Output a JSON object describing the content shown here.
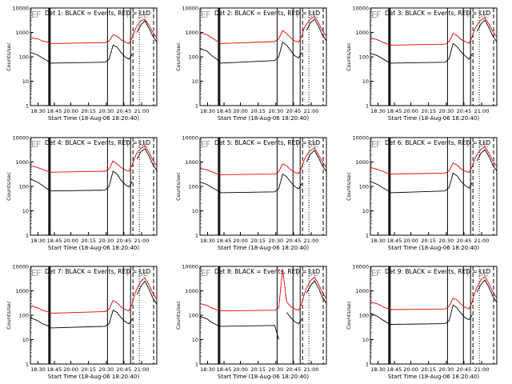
{
  "figure": {
    "xlabel": "Start Time (18-Aug-06 18:20:40)",
    "ylabel": "Counts/sec",
    "x_tick_labels": [
      "18:30",
      "18:45",
      "20:00",
      "20:15",
      "20:30",
      "20:45",
      "21:00"
    ],
    "y_tick_labels": [
      "1",
      "10",
      "100",
      "1000",
      "10000"
    ],
    "markers": [
      "E",
      "F",
      "T",
      "SE"
    ],
    "colors": {
      "black": "#000000",
      "red": "#e00000",
      "background": "#ffffff"
    }
  },
  "chart_data": [
    {
      "type": "line",
      "title": "Det 1: BLACK = Events, RED = LLD",
      "y_scale": "log",
      "ylim": [
        1,
        10000
      ],
      "grid": false,
      "x": [
        "18:21",
        "18:30",
        "18:36",
        "18:42",
        "18:47",
        "19:55",
        "20:00",
        "20:05",
        "20:10",
        "20:15",
        "20:20",
        "20:25",
        "20:29",
        "20:32",
        "20:35",
        "20:40",
        "20:45",
        "20:50",
        "20:55",
        "21:00"
      ],
      "series": [
        {
          "name": "Events",
          "color": "#000000",
          "values": [
            150,
            120,
            90,
            70,
            55,
            60,
            80,
            300,
            250,
            150,
            100,
            80,
            130,
            null,
            1000,
            2000,
            3000,
            1500,
            700,
            400
          ]
        },
        {
          "name": "LLD",
          "color": "#e00000",
          "values": [
            600,
            550,
            450,
            400,
            350,
            380,
            450,
            800,
            700,
            500,
            400,
            350,
            600,
            1200,
            1800,
            3000,
            3500,
            2000,
            1000,
            600
          ]
        }
      ],
      "vertical_lines": {
        "solid": [
          "18:44",
          "18:45",
          "18:46",
          "19:58",
          "20:18",
          "20:27"
        ],
        "dotted": [
          "20:38"
        ],
        "dashed": [
          "20:30",
          "20:56"
        ]
      }
    },
    {
      "type": "line",
      "title": "Det 2: BLACK = Events, RED = LLD",
      "y_scale": "log",
      "ylim": [
        1,
        10000
      ],
      "grid": false,
      "x": [
        "18:21",
        "18:30",
        "18:36",
        "18:42",
        "18:47",
        "19:55",
        "20:00",
        "20:05",
        "20:10",
        "20:15",
        "20:20",
        "20:25",
        "20:29",
        "20:32",
        "20:35",
        "20:40",
        "20:45",
        "20:50",
        "20:55",
        "21:00"
      ],
      "series": [
        {
          "name": "Events",
          "color": "#000000",
          "values": [
            220,
            170,
            110,
            80,
            55,
            70,
            100,
            400,
            300,
            180,
            110,
            90,
            150,
            null,
            1200,
            2500,
            3500,
            1800,
            800,
            450
          ]
        },
        {
          "name": "LLD",
          "color": "#e00000",
          "values": [
            1000,
            800,
            600,
            450,
            350,
            420,
            550,
            1200,
            900,
            600,
            450,
            400,
            700,
            1500,
            2200,
            3500,
            4500,
            2500,
            1200,
            700
          ]
        }
      ],
      "vertical_lines": {
        "solid": [
          "18:44",
          "18:45",
          "18:46",
          "19:58",
          "20:18",
          "20:27"
        ],
        "dotted": [
          "20:38"
        ],
        "dashed": [
          "20:30",
          "20:56"
        ]
      }
    },
    {
      "type": "line",
      "title": "Det 3: BLACK = Events, RED = LLD",
      "y_scale": "log",
      "ylim": [
        1,
        10000
      ],
      "grid": false,
      "x": [
        "18:21",
        "18:30",
        "18:36",
        "18:42",
        "18:47",
        "19:55",
        "20:00",
        "20:05",
        "20:10",
        "20:15",
        "20:20",
        "20:25",
        "20:29",
        "20:32",
        "20:35",
        "20:40",
        "20:45",
        "20:50",
        "20:55",
        "21:00"
      ],
      "series": [
        {
          "name": "Events",
          "color": "#000000",
          "values": [
            140,
            110,
            85,
            65,
            55,
            60,
            85,
            350,
            260,
            160,
            110,
            80,
            130,
            null,
            1100,
            2200,
            3200,
            1600,
            700,
            400
          ]
        },
        {
          "name": "LLD",
          "color": "#e00000",
          "values": [
            600,
            500,
            400,
            330,
            300,
            330,
            420,
            900,
            750,
            520,
            420,
            360,
            650,
            1300,
            2000,
            3200,
            4000,
            2200,
            1100,
            650
          ]
        }
      ],
      "vertical_lines": {
        "solid": [
          "18:44",
          "18:45",
          "18:46",
          "19:58",
          "20:18",
          "20:27"
        ],
        "dotted": [
          "20:38"
        ],
        "dashed": [
          "20:30",
          "20:56"
        ]
      }
    },
    {
      "type": "line",
      "title": "Det 4: BLACK = Events, RED = LLD",
      "y_scale": "log",
      "ylim": [
        1,
        10000
      ],
      "grid": false,
      "x": [
        "18:21",
        "18:30",
        "18:36",
        "18:42",
        "18:47",
        "19:55",
        "20:00",
        "20:05",
        "20:10",
        "20:15",
        "20:20",
        "20:25",
        "20:29",
        "20:32",
        "20:35",
        "20:40",
        "20:45",
        "20:50",
        "20:55",
        "21:00"
      ],
      "series": [
        {
          "name": "Events",
          "color": "#000000",
          "values": [
            200,
            150,
            110,
            80,
            65,
            70,
            100,
            420,
            320,
            180,
            120,
            95,
            160,
            null,
            1300,
            2600,
            3500,
            1800,
            800,
            450
          ]
        },
        {
          "name": "LLD",
          "color": "#e00000",
          "values": [
            700,
            600,
            500,
            420,
            380,
            420,
            520,
            1100,
            850,
            600,
            470,
            420,
            750,
            1500,
            2300,
            3600,
            4500,
            2500,
            1200,
            700
          ]
        }
      ],
      "vertical_lines": {
        "solid": [
          "18:44",
          "18:45",
          "18:46",
          "19:58",
          "20:18",
          "20:27"
        ],
        "dotted": [
          "20:38"
        ],
        "dashed": [
          "20:30",
          "20:56"
        ]
      }
    },
    {
      "type": "line",
      "title": "Det 5: BLACK = Events, RED = LLD",
      "y_scale": "log",
      "ylim": [
        1,
        10000
      ],
      "grid": false,
      "x": [
        "18:21",
        "18:30",
        "18:36",
        "18:42",
        "18:47",
        "19:55",
        "20:00",
        "20:05",
        "20:10",
        "20:15",
        "20:20",
        "20:25",
        "20:29",
        "20:32",
        "20:35",
        "20:40",
        "20:45",
        "20:50",
        "20:55",
        "21:00"
      ],
      "series": [
        {
          "name": "Events",
          "color": "#000000",
          "values": [
            150,
            120,
            90,
            70,
            55,
            60,
            80,
            320,
            250,
            150,
            100,
            80,
            130,
            null,
            1000,
            2100,
            3000,
            1500,
            700,
            400
          ]
        },
        {
          "name": "LLD",
          "color": "#e00000",
          "values": [
            550,
            480,
            400,
            330,
            300,
            320,
            400,
            850,
            700,
            480,
            380,
            340,
            600,
            1200,
            1900,
            3000,
            3800,
            2000,
            1000,
            600
          ]
        }
      ],
      "vertical_lines": {
        "solid": [
          "18:44",
          "18:45",
          "18:46",
          "19:58",
          "20:18",
          "20:27"
        ],
        "dotted": [
          "20:38"
        ],
        "dashed": [
          "20:30",
          "20:56"
        ]
      }
    },
    {
      "type": "line",
      "title": "Det 6: BLACK = Events, RED = LLD",
      "y_scale": "log",
      "ylim": [
        1,
        10000
      ],
      "grid": false,
      "x": [
        "18:21",
        "18:30",
        "18:36",
        "18:42",
        "18:47",
        "19:55",
        "20:00",
        "20:05",
        "20:10",
        "20:15",
        "20:20",
        "20:25",
        "20:29",
        "20:32",
        "20:35",
        "20:40",
        "20:45",
        "20:50",
        "20:55",
        "21:00"
      ],
      "series": [
        {
          "name": "Events",
          "color": "#000000",
          "values": [
            160,
            120,
            90,
            70,
            55,
            65,
            90,
            350,
            270,
            160,
            110,
            85,
            140,
            null,
            1100,
            2300,
            3200,
            1700,
            750,
            420
          ]
        },
        {
          "name": "LLD",
          "color": "#e00000",
          "values": [
            600,
            500,
            420,
            350,
            320,
            350,
            430,
            900,
            750,
            520,
            420,
            370,
            650,
            1300,
            2000,
            3300,
            4200,
            2300,
            1100,
            650
          ]
        }
      ],
      "vertical_lines": {
        "solid": [
          "18:44",
          "18:45",
          "18:46",
          "19:58",
          "20:18",
          "20:27"
        ],
        "dotted": [
          "20:38"
        ],
        "dashed": [
          "20:30",
          "20:56"
        ]
      }
    },
    {
      "type": "line",
      "title": "Det 7: BLACK = Events, RED = LLD",
      "y_scale": "log",
      "ylim": [
        1,
        10000
      ],
      "grid": false,
      "x": [
        "18:21",
        "18:30",
        "18:36",
        "18:42",
        "18:47",
        "19:55",
        "20:00",
        "20:05",
        "20:10",
        "20:15",
        "20:20",
        "20:25",
        "20:29",
        "20:32",
        "20:35",
        "20:40",
        "20:45",
        "20:50",
        "20:55",
        "21:00"
      ],
      "series": [
        {
          "name": "Events",
          "color": "#000000",
          "values": [
            80,
            60,
            45,
            38,
            30,
            35,
            45,
            160,
            130,
            80,
            55,
            45,
            70,
            null,
            700,
            1500,
            2500,
            1200,
            500,
            280
          ]
        },
        {
          "name": "LLD",
          "color": "#e00000",
          "values": [
            250,
            200,
            160,
            140,
            120,
            140,
            180,
            400,
            330,
            220,
            170,
            150,
            280,
            700,
            1200,
            2500,
            3500,
            1800,
            800,
            450
          ]
        }
      ],
      "vertical_lines": {
        "solid": [
          "18:44",
          "18:45",
          "18:46",
          "19:58",
          "20:18",
          "20:27"
        ],
        "dotted": [
          "20:38"
        ],
        "dashed": [
          "20:30",
          "20:56"
        ]
      }
    },
    {
      "type": "line",
      "title": "Det 8: BLACK = Events, RED = LLD",
      "y_scale": "log",
      "ylim": [
        1,
        10000
      ],
      "grid": false,
      "x": [
        "18:21",
        "18:30",
        "18:36",
        "18:42",
        "18:47",
        "19:55",
        "20:00",
        "20:05",
        "20:10",
        "20:15",
        "20:20",
        "20:25",
        "20:29",
        "20:32",
        "20:35",
        "20:40",
        "20:45",
        "20:50",
        "20:55",
        "21:00"
      ],
      "series": [
        {
          "name": "Events",
          "color": "#000000",
          "values": [
            90,
            70,
            50,
            40,
            35,
            38,
            10,
            null,
            130,
            80,
            55,
            45,
            70,
            null,
            800,
            1600,
            2600,
            1300,
            550,
            300
          ]
        },
        {
          "name": "LLD",
          "color": "#e00000",
          "values": [
            300,
            250,
            200,
            170,
            150,
            160,
            200,
            8000,
            350,
            230,
            180,
            160,
            300,
            700,
            1300,
            2600,
            3600,
            1900,
            850,
            480
          ]
        }
      ],
      "vertical_lines": {
        "solid": [
          "18:44",
          "18:45",
          "18:46",
          "19:58",
          "20:18",
          "20:27"
        ],
        "dotted": [
          "20:38"
        ],
        "dashed": [
          "20:30",
          "20:56"
        ]
      }
    },
    {
      "type": "line",
      "title": "Det 9: BLACK = Events, RED = LLD",
      "y_scale": "log",
      "ylim": [
        1,
        10000
      ],
      "grid": false,
      "x": [
        "18:21",
        "18:30",
        "18:36",
        "18:42",
        "18:47",
        "19:55",
        "20:00",
        "20:05",
        "20:10",
        "20:15",
        "20:20",
        "20:25",
        "20:29",
        "20:32",
        "20:35",
        "20:40",
        "20:45",
        "20:50",
        "20:55",
        "21:00"
      ],
      "series": [
        {
          "name": "Events",
          "color": "#000000",
          "values": [
            120,
            90,
            65,
            50,
            42,
            45,
            60,
            260,
            200,
            120,
            80,
            65,
            100,
            null,
            900,
            1800,
            2800,
            1400,
            600,
            330
          ]
        },
        {
          "name": "LLD",
          "color": "#e00000",
          "values": [
            350,
            290,
            230,
            190,
            170,
            180,
            230,
            500,
            420,
            280,
            210,
            180,
            340,
            800,
            1400,
            2800,
            3800,
            2000,
            900,
            500
          ]
        }
      ],
      "vertical_lines": {
        "solid": [
          "18:44",
          "18:45",
          "18:46",
          "19:58",
          "20:18",
          "20:27"
        ],
        "dotted": [
          "20:38"
        ],
        "dashed": [
          "20:30",
          "20:56"
        ]
      }
    }
  ]
}
